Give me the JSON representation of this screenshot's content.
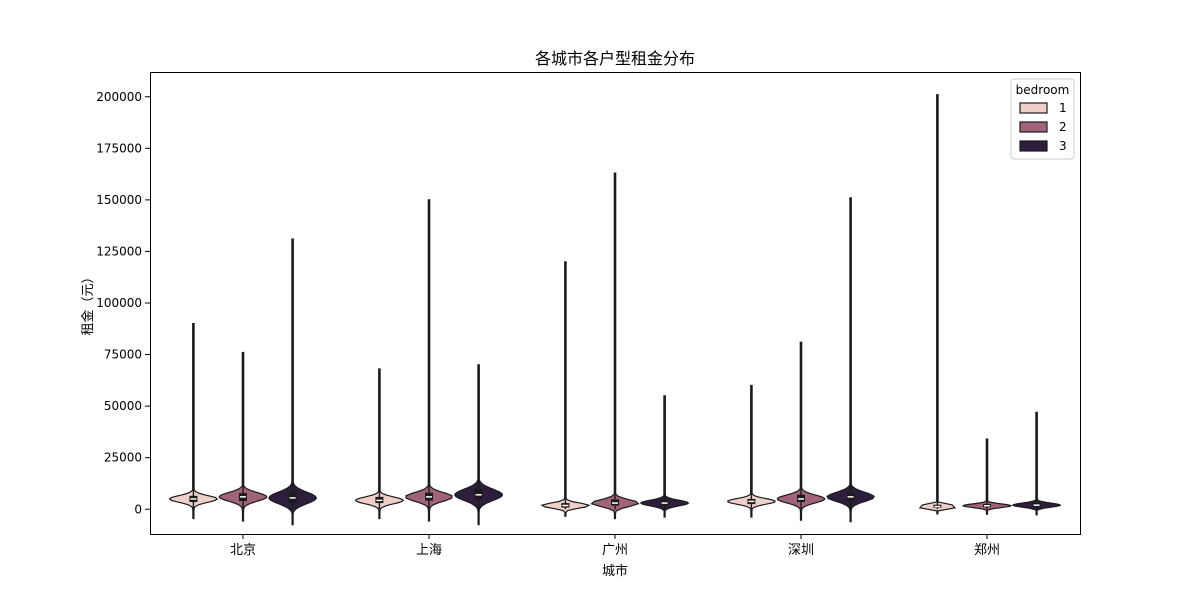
{
  "chart_data": {
    "type": "violin",
    "title": "各城市各户型租金分布",
    "xlabel": "城市",
    "ylabel": "租金（元）",
    "categories": [
      "北京",
      "上海",
      "广州",
      "深圳",
      "郑州"
    ],
    "ylim": [
      -12000,
      212000
    ],
    "yticks": [
      0,
      25000,
      50000,
      75000,
      100000,
      125000,
      150000,
      175000,
      200000
    ],
    "grid": false,
    "legend": {
      "title": "bedroom",
      "position": "top-right"
    },
    "series": [
      {
        "name": "1",
        "color": "#efd0c8",
        "groups": [
          {
            "category": "北京",
            "min": 0,
            "q1": 3500,
            "median": 5000,
            "q3": 6500,
            "max": 90000
          },
          {
            "category": "上海",
            "min": 0,
            "q1": 3000,
            "median": 4300,
            "q3": 6000,
            "max": 68000
          },
          {
            "category": "广州",
            "min": 0,
            "q1": 800,
            "median": 1800,
            "q3": 3000,
            "max": 120000
          },
          {
            "category": "深圳",
            "min": 0,
            "q1": 2500,
            "median": 3800,
            "q3": 5000,
            "max": 60000
          },
          {
            "category": "郑州",
            "min": 0,
            "q1": 700,
            "median": 1300,
            "q3": 2200,
            "max": 201000
          }
        ]
      },
      {
        "name": "2",
        "color": "#a0637b",
        "groups": [
          {
            "category": "北京",
            "min": 0,
            "q1": 4000,
            "median": 6000,
            "q3": 7800,
            "max": 76000
          },
          {
            "category": "上海",
            "min": 0,
            "q1": 4200,
            "median": 6000,
            "q3": 8000,
            "max": 150000
          },
          {
            "category": "广州",
            "min": 0,
            "q1": 1800,
            "median": 3000,
            "q3": 4800,
            "max": 163000
          },
          {
            "category": "深圳",
            "min": 0,
            "q1": 3500,
            "median": 5000,
            "q3": 7000,
            "max": 81000
          },
          {
            "category": "郑州",
            "min": 0,
            "q1": 1000,
            "median": 1700,
            "q3": 2600,
            "max": 34000
          }
        ]
      },
      {
        "name": "3",
        "color": "#2d1e3e",
        "groups": [
          {
            "category": "北京",
            "min": 0,
            "q1": 3000,
            "median": 5500,
            "q3": 8000,
            "max": 131000
          },
          {
            "category": "上海",
            "min": 0,
            "q1": 5000,
            "median": 7000,
            "q3": 10000,
            "max": 70000
          },
          {
            "category": "广州",
            "min": 0,
            "q1": 2000,
            "median": 3000,
            "q3": 4500,
            "max": 55000
          },
          {
            "category": "深圳",
            "min": 0,
            "q1": 4000,
            "median": 6000,
            "q3": 8000,
            "max": 151000
          },
          {
            "category": "郑州",
            "min": 0,
            "q1": 1200,
            "median": 2000,
            "q3": 3000,
            "max": 47000
          }
        ]
      }
    ]
  }
}
